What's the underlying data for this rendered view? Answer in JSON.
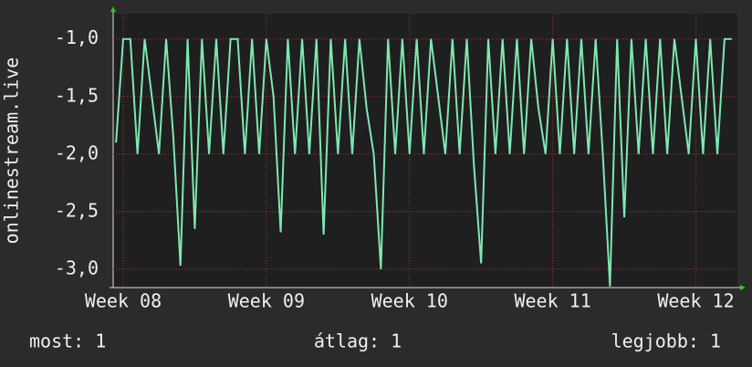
{
  "chart_data": {
    "type": "line",
    "y_label": "onlinestream.live",
    "x": [
      7.95,
      8.0,
      8.05,
      8.1,
      8.15,
      8.2,
      8.25,
      8.3,
      8.35,
      8.4,
      8.45,
      8.5,
      8.55,
      8.6,
      8.65,
      8.7,
      8.75,
      8.8,
      8.85,
      8.9,
      8.95,
      9.0,
      9.05,
      9.1,
      9.15,
      9.2,
      9.25,
      9.3,
      9.35,
      9.4,
      9.45,
      9.5,
      9.55,
      9.6,
      9.65,
      9.7,
      9.75,
      9.8,
      9.85,
      9.9,
      9.95,
      10.0,
      10.05,
      10.1,
      10.15,
      10.2,
      10.25,
      10.3,
      10.35,
      10.4,
      10.45,
      10.5,
      10.55,
      10.6,
      10.65,
      10.7,
      10.75,
      10.8,
      10.85,
      10.9,
      10.95,
      11.0,
      11.05,
      11.1,
      11.15,
      11.2,
      11.25,
      11.3,
      11.35,
      11.4,
      11.45,
      11.5,
      11.55,
      11.6,
      11.65,
      11.7,
      11.75,
      11.8,
      11.85,
      11.9,
      11.95,
      12.0,
      12.05,
      12.1,
      12.15,
      12.2,
      12.25
    ],
    "series": [
      {
        "name": "onlinestream.live",
        "color": "#7ee8b0",
        "values": [
          -1.9,
          -1,
          -1,
          -2,
          -1,
          -1.5,
          -2,
          -1,
          -1.85,
          -2.97,
          -1,
          -2.65,
          -1,
          -2,
          -1,
          -2,
          -1,
          -1,
          -2,
          -1,
          -2,
          -1,
          -1.5,
          -2.68,
          -1,
          -2,
          -1,
          -2,
          -1,
          -2.7,
          -1,
          -2,
          -1,
          -2,
          -1,
          -1.6,
          -2,
          -3.0,
          -1,
          -2,
          -1,
          -2,
          -1,
          -2,
          -1,
          -1.5,
          -2,
          -1,
          -2,
          -1,
          -2.1,
          -2.95,
          -1,
          -2,
          -1,
          -2,
          -1,
          -2,
          -1,
          -1.6,
          -2,
          -1,
          -2,
          -1,
          -2,
          -1,
          -2,
          -1,
          -2,
          -3.15,
          -1,
          -2.55,
          -1,
          -2,
          -1,
          -2,
          -1,
          -2,
          -1,
          -1.5,
          -2,
          -1,
          -2,
          -1,
          -2,
          -1,
          -1
        ]
      }
    ],
    "xlim": [
      7.93,
      12.29
    ],
    "xticks": [
      {
        "value": 8,
        "label": "Week 08"
      },
      {
        "value": 9,
        "label": "Week 09"
      },
      {
        "value": 10,
        "label": "Week 10"
      },
      {
        "value": 11,
        "label": "Week 11"
      },
      {
        "value": 12,
        "label": "Week 12"
      }
    ],
    "ylim": [
      -3.16,
      -0.78
    ],
    "yticks": [
      {
        "value": -3,
        "label": "-3,0"
      },
      {
        "value": -2.5,
        "label": "-2,5"
      },
      {
        "value": -2,
        "label": "-2,0"
      },
      {
        "value": -1.5,
        "label": "-1,5"
      },
      {
        "value": -1,
        "label": "-1,0"
      }
    ],
    "grid": true,
    "stats": [
      "most: 1",
      "átlag: 1",
      "legjobb: 1"
    ]
  }
}
